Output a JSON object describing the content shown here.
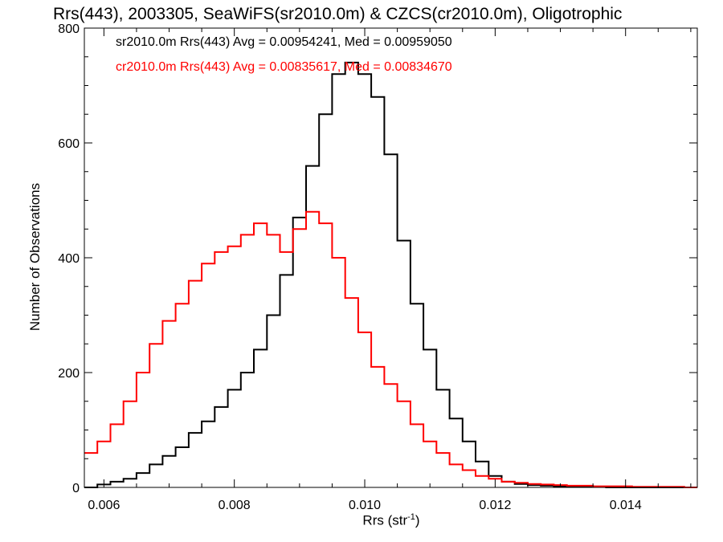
{
  "chart_data": {
    "type": "line",
    "title": "Rrs(443), 2003305, SeaWiFS(sr2010.0m) & CZCS(cr2010.0m), Oligotrophic",
    "xlabel": "Rrs (str",
    "xlabel_superscript": "-1",
    "xlabel_suffix": ")",
    "ylabel": "Number of Observations",
    "xlim": [
      0.0057,
      0.0151
    ],
    "ylim": [
      0,
      800
    ],
    "xticks": [
      0.006,
      0.008,
      0.01,
      0.012,
      0.014
    ],
    "xtick_labels": [
      "0.006",
      "0.008",
      "0.010",
      "0.012",
      "0.014"
    ],
    "yticks": [
      0,
      200,
      400,
      600,
      800
    ],
    "ytick_labels": [
      "0",
      "200",
      "400",
      "600",
      "800"
    ],
    "step": true,
    "series": [
      {
        "name": "sr2010.0m Rrs(443) Avg = 0.00954241, Med = 0.00959050",
        "color": "#000000",
        "x": [
          0.0057,
          0.0059,
          0.0061,
          0.0063,
          0.0065,
          0.0067,
          0.0069,
          0.0071,
          0.0073,
          0.0075,
          0.0077,
          0.0079,
          0.0081,
          0.0083,
          0.0085,
          0.0087,
          0.0089,
          0.0091,
          0.0093,
          0.0095,
          0.0097,
          0.0099,
          0.0101,
          0.0103,
          0.0105,
          0.0107,
          0.0109,
          0.0111,
          0.0113,
          0.0115,
          0.0117,
          0.0119,
          0.0121,
          0.0123,
          0.0125,
          0.0127,
          0.0129,
          0.0131,
          0.0133,
          0.0135,
          0.0137,
          0.0139,
          0.0141,
          0.0143,
          0.0145,
          0.0147,
          0.0149,
          0.0151
        ],
        "y": [
          0,
          5,
          10,
          15,
          25,
          40,
          55,
          70,
          95,
          115,
          140,
          170,
          200,
          240,
          300,
          370,
          470,
          560,
          650,
          720,
          740,
          720,
          680,
          580,
          430,
          320,
          240,
          170,
          120,
          80,
          45,
          20,
          10,
          6,
          4,
          3,
          2,
          1,
          1,
          1,
          0,
          0,
          0,
          0,
          0,
          0,
          0,
          0
        ]
      },
      {
        "name": "cr2010.0m Rrs(443) Avg = 0.00835617, Med = 0.00834670",
        "color": "#ff0000",
        "x": [
          0.0057,
          0.0059,
          0.0061,
          0.0063,
          0.0065,
          0.0067,
          0.0069,
          0.0071,
          0.0073,
          0.0075,
          0.0077,
          0.0079,
          0.0081,
          0.0083,
          0.0085,
          0.0087,
          0.0089,
          0.0091,
          0.0093,
          0.0095,
          0.0097,
          0.0099,
          0.0101,
          0.0103,
          0.0105,
          0.0107,
          0.0109,
          0.0111,
          0.0113,
          0.0115,
          0.0117,
          0.0119,
          0.0121,
          0.0123,
          0.0125,
          0.0127,
          0.0129,
          0.0131,
          0.0133,
          0.0135,
          0.0137,
          0.0139,
          0.0141,
          0.0143,
          0.0145,
          0.0147,
          0.0149,
          0.0151
        ],
        "y": [
          60,
          80,
          110,
          150,
          200,
          250,
          290,
          320,
          360,
          390,
          410,
          420,
          440,
          460,
          440,
          410,
          450,
          480,
          460,
          400,
          330,
          270,
          210,
          180,
          150,
          110,
          80,
          60,
          40,
          30,
          20,
          15,
          10,
          8,
          6,
          5,
          4,
          3,
          3,
          2,
          2,
          2,
          1,
          1,
          1,
          1,
          0,
          0
        ]
      }
    ]
  }
}
